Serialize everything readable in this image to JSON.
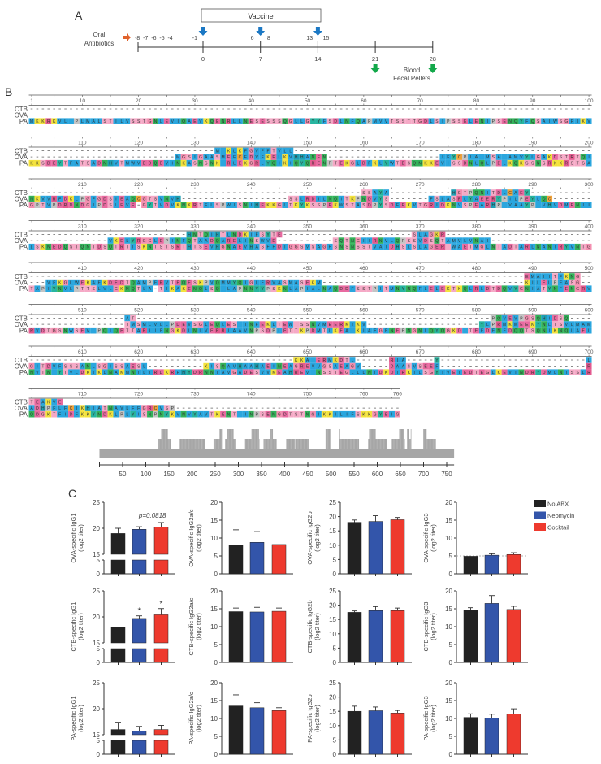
{
  "panel_a": {
    "label": "A",
    "vaccine_label": "Vaccine",
    "antibiotics_label": [
      "Oral",
      "Antibiotics"
    ],
    "sampling_label": [
      "Blood",
      "Fecal Pellets"
    ],
    "days_above": [
      "-8",
      "-7",
      "-6",
      "-5",
      "-4",
      "-1",
      "6",
      "8",
      "13",
      "15"
    ],
    "days_above_values": [
      -8,
      -7,
      -6,
      -5,
      -4,
      -1,
      6,
      8,
      13,
      15
    ],
    "days_below": [
      0,
      7,
      14,
      21,
      28
    ],
    "vaccine_days": [
      0,
      7,
      14
    ],
    "sampling_days": [
      21,
      28
    ],
    "colors": {
      "antibiotic_arrow": "#e0622c",
      "vaccine_arrow": "#1b78c4",
      "sampling_arrow": "#13a84a"
    }
  },
  "panel_b": {
    "label": "B",
    "sequence_names": [
      "CTB",
      "OVA",
      "PA"
    ],
    "alignment_length": 766,
    "blocks": [
      {
        "start": 1,
        "end": 100,
        "rows": {
          "CTB": [],
          "OVA": [],
          "PA": [
            {
              "at": 1,
              "seq": "MKKRKVLIPLMALSTILVSSTGNLEVIQAEVKQENRLLNESESSSQGLLGYYFSDLNFQAPMVVTSSTTGDLSIPSSELENIPSENQYFQSAIWSGFIKV"
            }
          ]
        }
      },
      {
        "start": 101,
        "end": 200,
        "rows": {
          "CTB": [
            {
              "at": 134,
              "seq": "MIKLKFGVFFTVLL"
            }
          ],
          "OVA": [
            {
              "at": 127,
              "seq": "MGSIGAASMEFCFDVFKELKVHHANEN"
            },
            {
              "at": 174,
              "seq": "IFYCPIAIMSALAMVYLGAKDSTRTQI"
            }
          ],
          "PA": [
            {
              "at": 101,
              "seq": "KKSDEYTFATSADNHVTMWVDDQEVINKASNSNKIRLEKGRLYQIKIQYQRENPTEKGLDFKLYWTDSQNKKEVISSDNLQLPELKQKSSNSRKKRSTSA"
            }
          ]
        }
      },
      {
        "start": 201,
        "end": 300,
        "rows": {
          "CTB": [
            {
              "at": 260,
              "seq": "SSAYA"
            },
            {
              "at": 276,
              "seq": "HGTPQNITDLCAEY"
            }
          ],
          "OVA": [
            {
              "at": 201,
              "seq": "NKVVRFDKLPGFGDSIEAQCGTSVNVH"
            },
            {
              "at": 247,
              "seq": "SSLRDILNQITKPNDVYS"
            },
            {
              "at": 272,
              "seq": "FSLASRLYAEERYPILPEYLQC"
            }
          ],
          "PA": [
            {
              "at": 201,
              "seq": "GPTVPDRDNDGIPDSLEVE"
            },
            {
              "at": 221,
              "seq": "GYTVDVKNKRTFLSPWISNIHEKKGLTKYKSSPEKWSTASDPYSDFEKVTGRIDKNVSPEARHPLVAAYPIVHVDMENII"
            }
          ]
        }
      },
      {
        "start": 301,
        "end": 400,
        "rows": {
          "CTB": [
            {
              "at": 329,
              "seq": "HNTQIHTLNDKIFSYTE"
            },
            {
              "at": 369,
              "seq": "SLAGKR"
            }
          ],
          "OVA": [
            {
              "at": 315,
              "seq": "VKELYRGGLEPINFQTAADQARELINSWVE"
            },
            {
              "at": 355,
              "seq": "SQTNGIIRNVLQPSSVDSQTAMVLVNAI"
            }
          ],
          "PA": [
            {
              "at": 301,
              "seq": "LSKNEDQSTQNTDSQTRTISKNTSTSRTHTSEVHGNAEVHASFFDIGGSVSAGFSNSNSSTVAIDHSLSLAGERTWAETMGLNTADTARLNANIRYVNTG"
            }
          ]
        }
      },
      {
        "start": 401,
        "end": 500,
        "rows": {
          "CTB": [
            {
              "at": 489,
              "seq": "EMAIITFKNG"
            }
          ],
          "OVA": [
            {
              "at": 404,
              "seq": "VFKGLWEKAFKDEDTQAMPFRVTEQESKPVQMMYQIGLFRVASMASEKM"
            },
            {
              "at": 489,
              "seq": "KILELPFASG"
            }
          ],
          "PA": [
            {
              "at": 401,
              "seq": "TAPIYNVLPTTSLVLGKNQTLA"
            },
            {
              "at": 424,
              "seq": "TIKAKENQLSQILAPNNYYPSKNLAPIALNAQDDFSSTPITMNYNQFLELEKTKQLRLDTDQVYGNIATYNFENGRV"
            }
          ]
        }
      },
      {
        "start": 501,
        "end": 600,
        "rows": {
          "CTB": [
            {
              "at": 518,
              "seq": "AT"
            },
            {
              "at": 583,
              "seq": "PQVEVPGSQHIDSQ"
            }
          ],
          "OVA": [
            {
              "at": 518,
              "seq": "TMSMLVLLPDEVSGLEQLESIINFEKLTEWTSSNVMEERKIKV"
            },
            {
              "at": 581,
              "seq": "YLPRMKMEEKYNLTSVLMAM"
            }
          ],
          "PA": [
            {
              "at": 501,
              "seq": "RVDTGSNWSEVLPQIQETTARIIFNGKDLNLVERRIAAVNPSDPLETTKPDMTLKEALKIAFGFNEPNGNLQYQGKDITEFDFNFDQQTSQNIKNQLAEL"
            }
          ]
        }
      },
      {
        "start": 601,
        "end": 700,
        "rows": {
          "CTB": [
            {
              "at": 648,
              "seq": "KKAIERMKDTL"
            },
            {
              "at": 665,
              "seq": "RIA"
            },
            {
              "at": 673,
              "seq": "Y"
            },
            {
              "at": 700,
              "seq": "L"
            }
          ],
          "OVA": [
            {
              "at": 601,
              "seq": "GITDVFSSSANLSGISSAESL"
            },
            {
              "at": 632,
              "seq": "KISQAVHAAHAEINEAGREVVGSAEAGV"
            },
            {
              "at": 665,
              "seq": "DAASVSEEF"
            },
            {
              "at": 700,
              "seq": "R"
            }
          ],
          "PA": [
            {
              "at": 601,
              "seq": "NVTNIYTVLDKIKLNAKMNILIRDKRFHYDRNNIAVGADESVVKEAHREVINSSTEGLLLNIDKDIRKILSGYIVEIEDTEGLKEVINDRYDMLNISSLR"
            }
          ]
        }
      },
      {
        "start": 701,
        "end": 766,
        "rows": {
          "CTB": [
            {
              "at": 701,
              "seq": "TEAKVE"
            }
          ],
          "OVA": [
            {
              "at": 701,
              "seq": "ADHPFLFCIKHIATNAVLFFGRCVSP"
            }
          ],
          "PA": [
            {
              "at": 701,
              "seq": "QDGKTFIDFKKYNDKLPLYISNPNYKVNVYAVTKENTIINPSENGDTSTNGIKKILIFSKKGYEIG"
            }
          ]
        }
      }
    ],
    "residue_colors": {
      "A": "#2aa6de",
      "I": "#2aa6de",
      "L": "#2aa6de",
      "M": "#2aa6de",
      "F": "#2aa6de",
      "W": "#2aa6de",
      "V": "#2aa6de",
      "K": "#f3e23c",
      "R": "#e25a8f",
      "D": "#e86aa0",
      "E": "#e86aa0",
      "N": "#33b25a",
      "Q": "#33b25a",
      "S": "#f5a9c6",
      "T": "#f5a9c6",
      "G": "#f38fb0",
      "P": "#c4c4c4",
      "H": "#1d9fb3",
      "Y": "#27b5a0",
      "C": "#f0a23a"
    },
    "coverage_axis_ticks": [
      50,
      100,
      150,
      200,
      250,
      300,
      350,
      400,
      450,
      500,
      550,
      600,
      650,
      700,
      750
    ]
  },
  "panel_c": {
    "label": "C",
    "legend": [
      {
        "name": "No ABX",
        "color": "#222222"
      },
      {
        "name": "Neomycin",
        "color": "#3355aa"
      },
      {
        "name": "Cocktail",
        "color": "#ee3a2e"
      }
    ],
    "chart_data": [
      {
        "type": "bar",
        "ylabel": [
          "OVA-specific IgG1",
          "(log2 titer)"
        ],
        "broken_axis": [
          5,
          15
        ],
        "ylim": [
          0,
          25
        ],
        "yticks": [
          0,
          5,
          15,
          20,
          25
        ],
        "categories": [
          "No ABX",
          "Neomycin",
          "Cocktail"
        ],
        "values": [
          19.0,
          19.8,
          20.2
        ],
        "errors": [
          1.0,
          0.5,
          0.9
        ],
        "annotations": [
          {
            "bar": 2,
            "text": "p=0.0818"
          }
        ]
      },
      {
        "type": "bar",
        "ylabel": [
          "OVA-specific IgG2a/c",
          "(log2 titer)"
        ],
        "ylim": [
          0,
          20
        ],
        "yticks": [
          0,
          5,
          10,
          15,
          20
        ],
        "categories": [
          "No ABX",
          "Neomycin",
          "Cocktail"
        ],
        "values": [
          8.0,
          8.8,
          8.2
        ],
        "errors": [
          4.3,
          3.0,
          3.5
        ],
        "annotations": []
      },
      {
        "type": "bar",
        "ylabel": [
          "OVA-specific IgG2b",
          "(log2 titer)"
        ],
        "ylim": [
          0,
          25
        ],
        "yticks": [
          0,
          5,
          10,
          15,
          20,
          25
        ],
        "categories": [
          "No ABX",
          "Neomycin",
          "Cocktail"
        ],
        "values": [
          18.0,
          18.3,
          18.9
        ],
        "errors": [
          0.8,
          2.0,
          0.8
        ],
        "annotations": []
      },
      {
        "type": "bar",
        "ylabel": [
          "OVA-specific IgG3",
          "(log2 titer)"
        ],
        "ylim": [
          0,
          20
        ],
        "yticks": [
          0,
          5,
          10,
          15,
          20
        ],
        "categories": [
          "No ABX",
          "Neomycin",
          "Cocktail"
        ],
        "values": [
          4.9,
          5.2,
          5.4
        ],
        "errors": [
          0,
          0.4,
          0.5
        ],
        "reference_line": 5,
        "annotations": []
      },
      {
        "type": "bar",
        "ylabel": [
          "CTB-specific IgG1",
          "(log2 titer)"
        ],
        "broken_axis": [
          5,
          15
        ],
        "ylim": [
          0,
          25
        ],
        "yticks": [
          0,
          5,
          15,
          20,
          25
        ],
        "categories": [
          "No ABX",
          "Neomycin",
          "Cocktail"
        ],
        "values": [
          18.0,
          19.7,
          20.4
        ],
        "errors": [
          0,
          0.5,
          1.2
        ],
        "annotations": [
          {
            "bar": 1,
            "text": "*"
          },
          {
            "bar": 2,
            "text": "*"
          }
        ]
      },
      {
        "type": "bar",
        "ylabel": [
          "CTB-specific IgG2a/c",
          "(log2 titer)"
        ],
        "ylim": [
          0,
          20
        ],
        "yticks": [
          0,
          5,
          10,
          15,
          20
        ],
        "categories": [
          "No ABX",
          "Neomycin",
          "Cocktail"
        ],
        "values": [
          14.2,
          14.1,
          14.3
        ],
        "errors": [
          1.0,
          1.3,
          0.9
        ],
        "annotations": []
      },
      {
        "type": "bar",
        "ylabel": [
          "CTB-specific IgG2b",
          "(log2 titer)"
        ],
        "ylim": [
          0,
          25
        ],
        "yticks": [
          0,
          5,
          10,
          15,
          20,
          25
        ],
        "categories": [
          "No ABX",
          "Neomycin",
          "Cocktail"
        ],
        "values": [
          17.5,
          18.1,
          18.1
        ],
        "errors": [
          0.5,
          1.4,
          0.9
        ],
        "annotations": []
      },
      {
        "type": "bar",
        "ylabel": [
          "CTB-specific IgG3",
          "(log2 titer)"
        ],
        "ylim": [
          0,
          20
        ],
        "yticks": [
          0,
          5,
          10,
          15,
          20
        ],
        "categories": [
          "No ABX",
          "Neomycin",
          "Cocktail"
        ],
        "values": [
          14.7,
          16.5,
          14.8
        ],
        "errors": [
          0.6,
          2.2,
          0.9
        ],
        "annotations": []
      },
      {
        "type": "bar",
        "ylabel": [
          "PA-specific IgG1",
          "(log2 titer)"
        ],
        "broken_axis": [
          5,
          15
        ],
        "ylim": [
          0,
          25
        ],
        "yticks": [
          0,
          5,
          15,
          20,
          25
        ],
        "categories": [
          "No ABX",
          "Neomycin",
          "Cocktail"
        ],
        "values": [
          16.0,
          15.7,
          16.0
        ],
        "errors": [
          1.4,
          0.9,
          0.8
        ],
        "annotations": []
      },
      {
        "type": "bar",
        "ylabel": [
          "PA-specific IgG2a/c",
          "(log2 titer)"
        ],
        "ylim": [
          0,
          20
        ],
        "yticks": [
          0,
          5,
          10,
          15,
          20
        ],
        "categories": [
          "No ABX",
          "Neomycin",
          "Cocktail"
        ],
        "values": [
          13.5,
          13.0,
          12.2
        ],
        "errors": [
          3.1,
          1.4,
          0.8
        ],
        "annotations": []
      },
      {
        "type": "bar",
        "ylabel": [
          "PA-specific IgG2b",
          "(log2 titer)"
        ],
        "ylim": [
          0,
          25
        ],
        "yticks": [
          0,
          5,
          10,
          15,
          20,
          25
        ],
        "categories": [
          "No ABX",
          "Neomycin",
          "Cocktail"
        ],
        "values": [
          15.0,
          15.2,
          14.4
        ],
        "errors": [
          1.8,
          1.3,
          0.9
        ],
        "annotations": []
      },
      {
        "type": "bar",
        "ylabel": [
          "PA-specific IgG3",
          "(log2 titer)"
        ],
        "ylim": [
          0,
          20
        ],
        "yticks": [
          0,
          5,
          10,
          15,
          20
        ],
        "categories": [
          "No ABX",
          "Neomycin",
          "Cocktail"
        ],
        "values": [
          10.3,
          10.1,
          11.2
        ],
        "errors": [
          1.0,
          1.1,
          1.5
        ],
        "annotations": []
      }
    ]
  }
}
